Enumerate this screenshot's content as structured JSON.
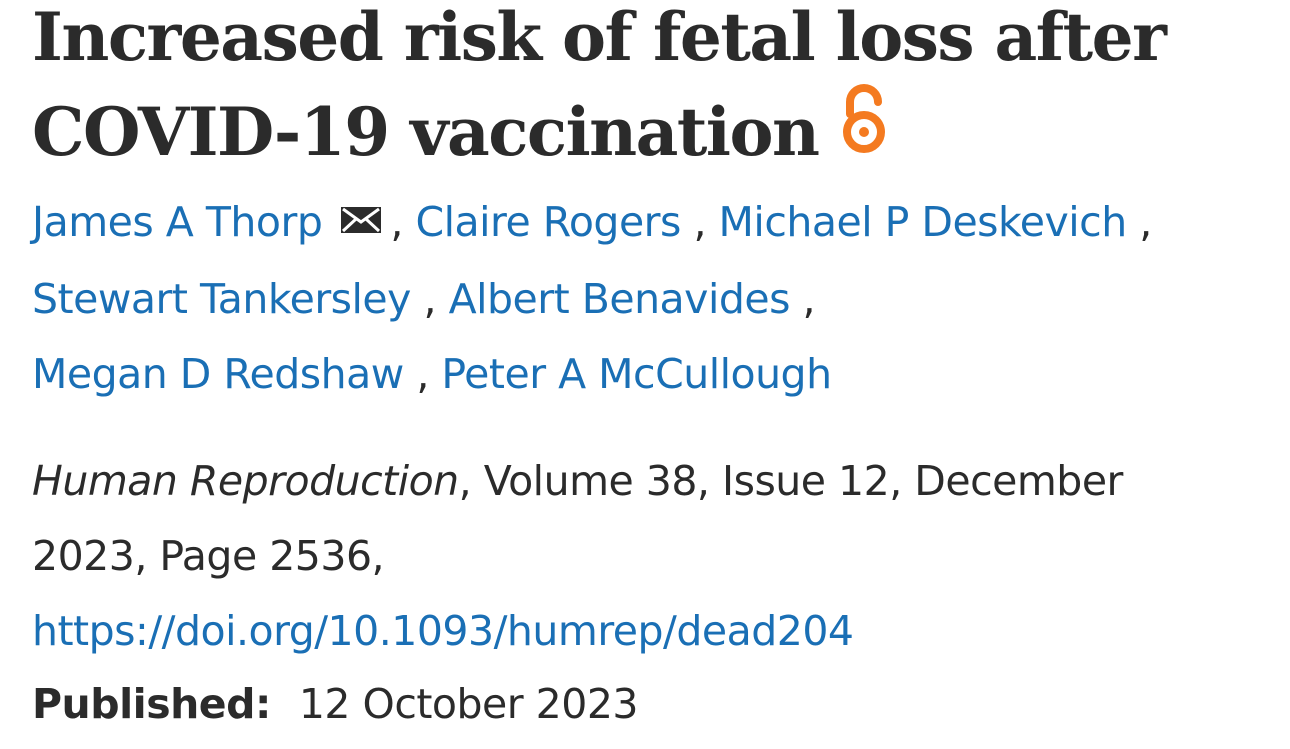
{
  "article": {
    "title_line1": "Increased risk of fetal loss after",
    "title_line2": "COVID-19 vaccination",
    "open_access_icon": "open-access-lock-icon",
    "authors": [
      {
        "name": "James A Thorp",
        "corresponding": true
      },
      {
        "name": "Claire Rogers"
      },
      {
        "name": "Michael P Deskevich"
      },
      {
        "name": "Stewart Tankersley"
      },
      {
        "name": "Albert Benavides"
      },
      {
        "name": "Megan D Redshaw"
      },
      {
        "name": "Peter A McCullough"
      }
    ],
    "separator": ",",
    "journal": "Human Reproduction",
    "citation_rest_line1": ", Volume 38, Issue 12, December",
    "citation_line2": "2023, Page 2536,",
    "doi": "https://doi.org/10.1093/humrep/dead204",
    "published_label": "Published:",
    "published_date": "12 October 2023"
  },
  "colors": {
    "link": "#1a6fb5",
    "text": "#2b2b2b",
    "open_access": "#f47a20"
  }
}
